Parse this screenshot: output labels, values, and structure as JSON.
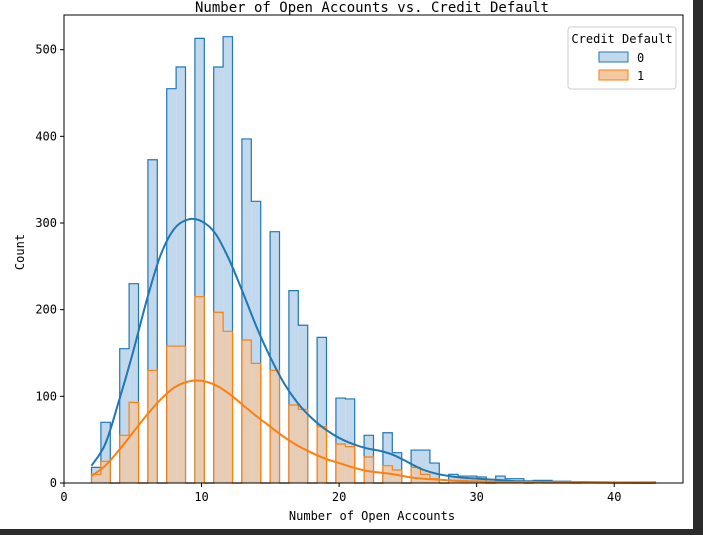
{
  "chart_data": {
    "type": "histogram",
    "title": "Number of Open Accounts vs. Credit Default",
    "xlabel": "Number of Open Accounts",
    "ylabel": "Count",
    "xlim": [
      0,
      45
    ],
    "ylim": [
      0,
      540
    ],
    "xticks": [
      0,
      10,
      20,
      30,
      40
    ],
    "yticks": [
      0,
      100,
      200,
      300,
      400,
      500
    ],
    "bin_edges": [
      2,
      2.683,
      3.367,
      4.05,
      4.733,
      5.417,
      6.1,
      6.783,
      7.467,
      8.15,
      8.833,
      9.517,
      10.2,
      10.883,
      11.567,
      12.25,
      12.933,
      13.617,
      14.3,
      14.983,
      15.667,
      16.35,
      17.033,
      17.717,
      18.4,
      19.083,
      19.767,
      20.45,
      21.133,
      21.817,
      22.5,
      23.183,
      23.867,
      24.55,
      25.233,
      25.917,
      26.6,
      27.283,
      27.967,
      28.65,
      29.333,
      30.017,
      30.7,
      31.383,
      32.067,
      32.75,
      33.433,
      34.117,
      34.8,
      35.483,
      36.167,
      36.85,
      37.533,
      38.217,
      38.9,
      39.583,
      40.267,
      40.95,
      41.633,
      42.317,
      43
    ],
    "legend": {
      "title": "Credit Default",
      "position": "top-right"
    },
    "series": [
      {
        "name": "0",
        "color": "#1f77b4",
        "fill": "#c2d8ec",
        "counts": [
          18,
          70,
          0,
          155,
          230,
          0,
          373,
          0,
          455,
          480,
          0,
          513,
          0,
          480,
          515,
          0,
          397,
          325,
          0,
          290,
          0,
          222,
          182,
          0,
          168,
          0,
          98,
          97,
          0,
          55,
          0,
          58,
          35,
          0,
          38,
          38,
          23,
          0,
          10,
          8,
          8,
          7,
          0,
          8,
          5,
          5,
          0,
          3,
          3,
          2,
          2,
          0,
          1,
          1,
          1,
          0,
          1,
          1,
          1,
          1
        ],
        "kde": [
          [
            2,
            20
          ],
          [
            3,
            45
          ],
          [
            4,
            95
          ],
          [
            5,
            150
          ],
          [
            6,
            210
          ],
          [
            7,
            262
          ],
          [
            8,
            293
          ],
          [
            9,
            304
          ],
          [
            10,
            302
          ],
          [
            11,
            288
          ],
          [
            12,
            258
          ],
          [
            13,
            220
          ],
          [
            14,
            180
          ],
          [
            15,
            145
          ],
          [
            16,
            115
          ],
          [
            17,
            92
          ],
          [
            18,
            75
          ],
          [
            19,
            62
          ],
          [
            20,
            52
          ],
          [
            21,
            45
          ],
          [
            22,
            40
          ],
          [
            23,
            37
          ],
          [
            24,
            32
          ],
          [
            25,
            24
          ],
          [
            26,
            16
          ],
          [
            27,
            11
          ],
          [
            28,
            8
          ],
          [
            29,
            6
          ],
          [
            30,
            5
          ],
          [
            31,
            4
          ],
          [
            32,
            3
          ],
          [
            33,
            2
          ],
          [
            34,
            2
          ],
          [
            36,
            1
          ],
          [
            38,
            1
          ],
          [
            43,
            0
          ]
        ]
      },
      {
        "name": "1",
        "color": "#ff7f0e",
        "fill": "#f3c9a4",
        "counts": [
          10,
          25,
          0,
          55,
          93,
          0,
          130,
          0,
          158,
          158,
          0,
          215,
          0,
          197,
          175,
          0,
          165,
          138,
          0,
          130,
          0,
          90,
          85,
          0,
          65,
          0,
          45,
          42,
          0,
          30,
          0,
          20,
          15,
          0,
          18,
          10,
          5,
          0,
          3,
          3,
          2,
          2,
          0,
          2,
          1,
          1,
          0,
          1,
          0,
          0,
          0,
          0,
          0,
          0,
          0,
          0,
          0,
          0,
          0,
          0
        ],
        "kde": [
          [
            2,
            8
          ],
          [
            3,
            20
          ],
          [
            4,
            38
          ],
          [
            5,
            58
          ],
          [
            6,
            78
          ],
          [
            7,
            96
          ],
          [
            8,
            110
          ],
          [
            9,
            117
          ],
          [
            10,
            118
          ],
          [
            11,
            113
          ],
          [
            12,
            103
          ],
          [
            13,
            90
          ],
          [
            14,
            77
          ],
          [
            15,
            65
          ],
          [
            16,
            53
          ],
          [
            17,
            43
          ],
          [
            18,
            35
          ],
          [
            19,
            28
          ],
          [
            20,
            23
          ],
          [
            21,
            18
          ],
          [
            22,
            14
          ],
          [
            23,
            12
          ],
          [
            24,
            10
          ],
          [
            25,
            7
          ],
          [
            26,
            5
          ],
          [
            27,
            4
          ],
          [
            28,
            3
          ],
          [
            29,
            2
          ],
          [
            30,
            2
          ],
          [
            32,
            1
          ],
          [
            34,
            1
          ],
          [
            43,
            0
          ]
        ]
      }
    ]
  }
}
